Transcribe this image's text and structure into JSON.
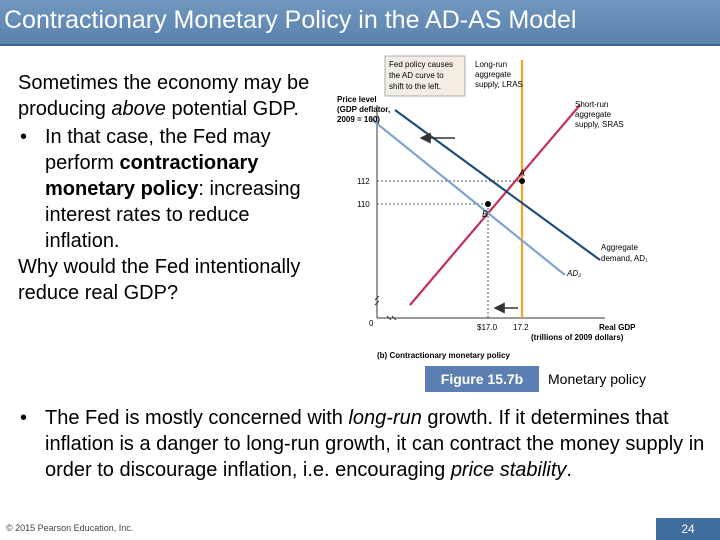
{
  "title": "Contractionary Monetary Policy in the AD-AS Model",
  "left": {
    "line1": "Sometimes the economy may be producing ",
    "line1_em": "above",
    "line1_end": " potential GDP.",
    "bullet_dot": "•",
    "bullet_pre": "In that case, the Fed may perform ",
    "bullet_bold": "contractionary monetary policy",
    "bullet_post": ": increasing interest rates to reduce inflation.",
    "question": "Why would the Fed intentionally reduce real GDP?"
  },
  "figure": {
    "callout_line1": "Fed policy causes",
    "callout_line2": "the AD curve to",
    "callout_line3": "shift to the left.",
    "ylabel_line1": "Price level",
    "ylabel_line2": "(GDP deflator,",
    "ylabel_line3": "2009 = 100)",
    "lras_line1": "Long-run",
    "lras_line2": "aggregate",
    "lras_line3": "supply, LRAS",
    "sras_line1": "Short-run",
    "sras_line2": "aggregate",
    "sras_line3": "supply, SRAS",
    "ad1_line1": "Aggregate",
    "ad1_line2": "demand, AD₁",
    "ad2_label": "AD₂",
    "point_a": "A",
    "point_b": "B",
    "tick_112": "112",
    "tick_110": "110",
    "origin": "0",
    "x_tick_170": "$17.0",
    "x_tick_172": "17.2",
    "xlabel_line1": "Real GDP",
    "xlabel_line2": "(trillions of 2009 dollars)",
    "panel_caption": "(b) Contractionary monetary policy"
  },
  "figure_label": "Figure 15.7b",
  "figure_desc": "Monetary policy",
  "bottom": {
    "dot": "•",
    "pre": "The Fed is mostly concerned with ",
    "em1": "long-run",
    "mid": " growth. If it determines that inflation is a danger to long-run growth, it can contract the money supply in order to discourage inflation, i.e. encouraging ",
    "em2": "price stability",
    "end": "."
  },
  "footer": {
    "copyright": "© 2015 Pearson Education, Inc.",
    "page": "24"
  },
  "colors": {
    "title_bar": "#5a82ad",
    "lras": "#f5a623",
    "sras": "#c0305a",
    "ad1": "#1f4e79",
    "ad2": "#7fa3cf",
    "figure_label_bg": "#5b7fb0"
  }
}
